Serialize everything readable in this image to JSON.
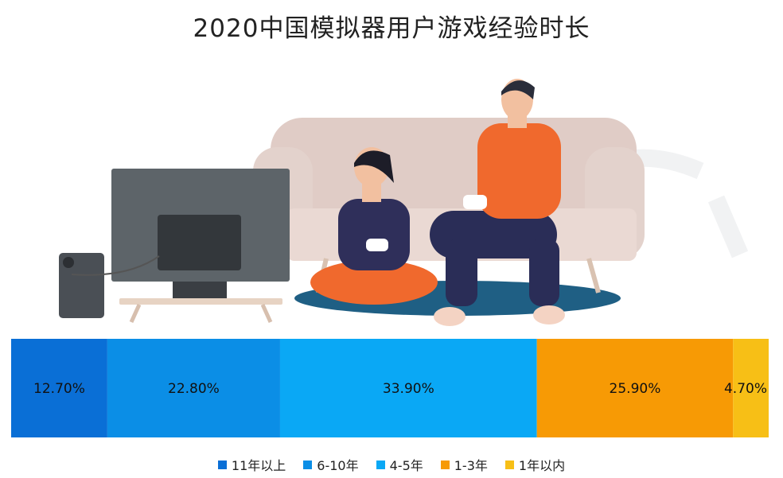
{
  "chart_data": {
    "type": "bar",
    "orientation": "horizontal-stacked",
    "title": "2020中国模拟器用户游戏经验时长",
    "unit": "%",
    "series": [
      {
        "name": "11年以上",
        "value": 12.7,
        "label": "12.70%",
        "color": "#0a6fd6"
      },
      {
        "name": "6-10年",
        "value": 22.8,
        "label": "22.80%",
        "color": "#0b8ee6"
      },
      {
        "name": "4-5年",
        "value": 33.9,
        "label": "33.90%",
        "color": "#0aa8f5"
      },
      {
        "name": "1-3年",
        "value": 25.9,
        "label": "25.90%",
        "color": "#f79a05"
      },
      {
        "name": "1年以内",
        "value": 4.7,
        "label": "4.70%",
        "color": "#f7bf16"
      }
    ],
    "legend_position": "bottom"
  }
}
